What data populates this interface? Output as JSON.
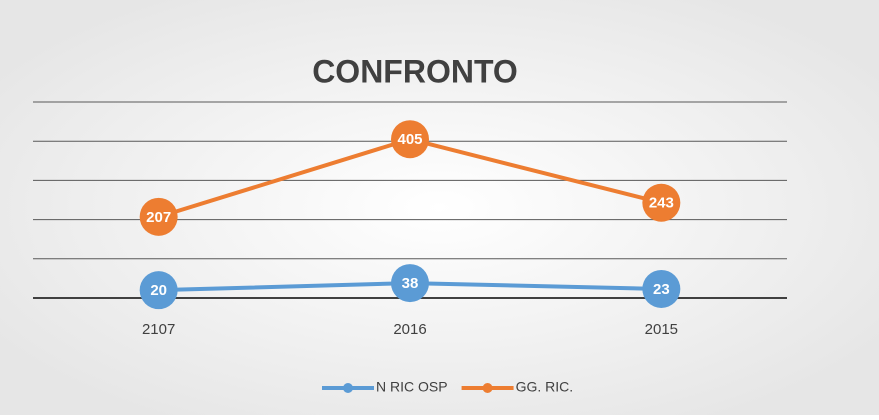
{
  "chart_data": {
    "type": "line",
    "title": "CONFRONTO",
    "categories": [
      "2107",
      "2016",
      "2015"
    ],
    "series": [
      {
        "name": "N RIC OSP",
        "color": "#5b9bd5",
        "values": [
          20,
          38,
          23
        ]
      },
      {
        "name": "GG. RIC.",
        "color": "#ed7d31",
        "values": [
          207,
          405,
          243
        ]
      }
    ],
    "ylim": [
      0,
      500
    ],
    "yticks": [
      0,
      100,
      200,
      300,
      400,
      500
    ],
    "grid": true,
    "legend": "bottom"
  }
}
